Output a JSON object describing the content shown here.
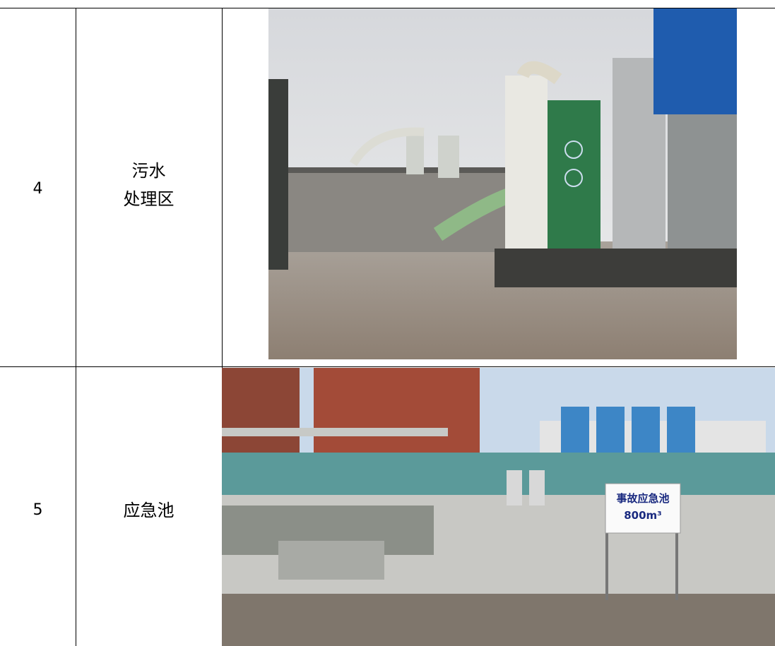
{
  "table": {
    "rows": [
      {
        "number": "4",
        "name_lines": [
          "污水",
          "处理区"
        ]
      },
      {
        "number": "5",
        "name_lines": [
          "应急池"
        ],
        "photo_sign": [
          "事故应急池",
          "800m³"
        ]
      }
    ]
  }
}
